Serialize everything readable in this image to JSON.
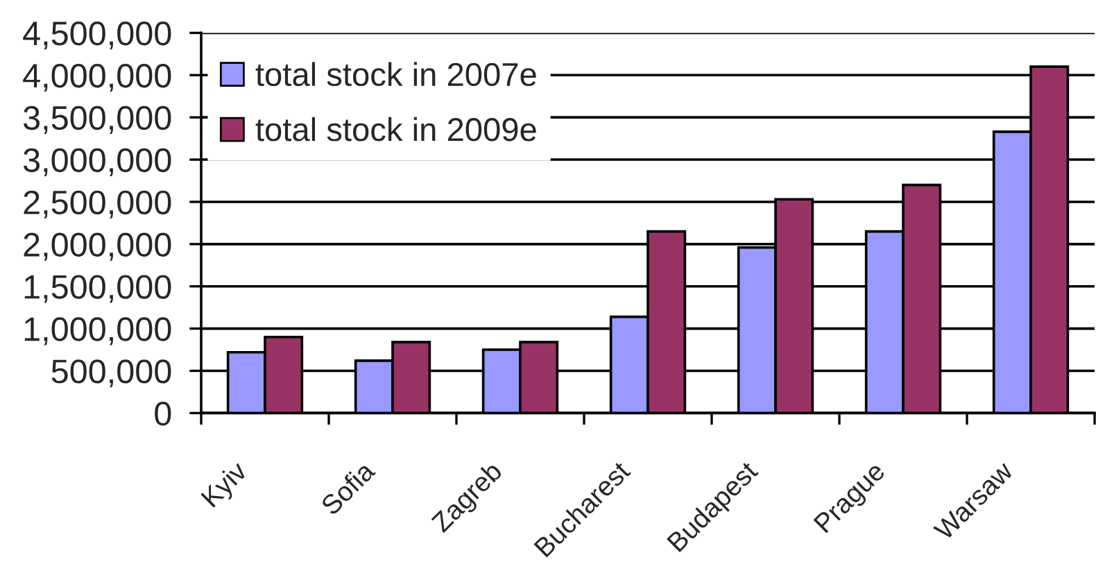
{
  "chart_data": {
    "type": "bar",
    "categories": [
      "Kyiv",
      "Sofia",
      "Zagreb",
      "Bucharest",
      "Budapest",
      "Prague",
      "Warsaw"
    ],
    "series": [
      {
        "name": "total stock in 2007e",
        "color": "#9999ff",
        "values": [
          720000,
          620000,
          750000,
          1140000,
          1960000,
          2150000,
          3330000
        ]
      },
      {
        "name": "total stock in 2009e",
        "color": "#993366",
        "values": [
          900000,
          840000,
          840000,
          2150000,
          2530000,
          2700000,
          4100000
        ]
      }
    ],
    "ylim": [
      0,
      4500000
    ],
    "yticks": [
      0,
      {
        "value": 500000,
        "label": "500,000"
      },
      {
        "value": 1000000,
        "label": "1,000,000"
      },
      {
        "value": 1500000,
        "label": "1,500,000"
      },
      {
        "value": 2000000,
        "label": "2,000,000"
      },
      {
        "value": 2500000,
        "label": "2,500,000"
      },
      {
        "value": 3000000,
        "label": "3,000,000"
      },
      {
        "value": 3500000,
        "label": "3,500,000"
      },
      {
        "value": 4000000,
        "label": "4,000,000"
      },
      {
        "value": 4500000,
        "label": "4,500,000"
      }
    ],
    "grid": "y",
    "legend": "top left"
  }
}
